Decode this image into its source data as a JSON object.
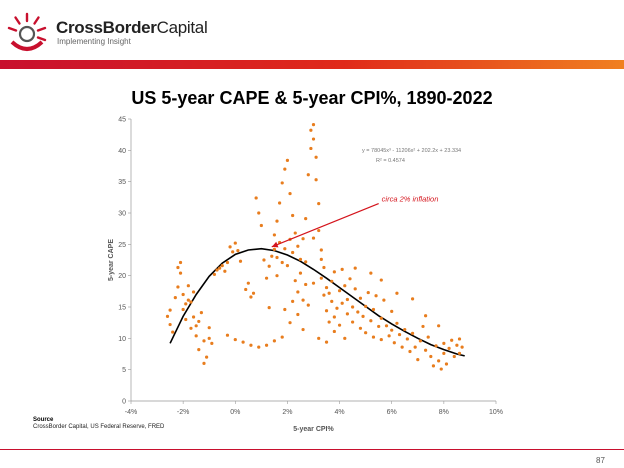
{
  "header": {
    "brand_bold": "CrossBorder",
    "brand_rest": "Capital",
    "tagline": "Implementing Insight"
  },
  "slide": {
    "title": "US 5-year CAPE & 5-year CPI%, 1890-2022",
    "source_label": "Source",
    "source_text": "CrossBorder Capital, US Federal Reserve, FRED",
    "page_number": "87"
  },
  "colors": {
    "brand_red": "#c8102e",
    "scatter": "#e87d1e",
    "trend": "#000000",
    "annotation": "#d4141c"
  },
  "chart_data": {
    "type": "scatter",
    "title": "",
    "xlabel": "5-year CPI%",
    "ylabel": "5-year CAPE",
    "xlim": [
      -4,
      10
    ],
    "ylim": [
      0,
      45
    ],
    "x_ticks": [
      -4,
      -2,
      0,
      2,
      4,
      6,
      8,
      10
    ],
    "x_tick_labels": [
      "-4%",
      "-2%",
      "0%",
      "2%",
      "4%",
      "6%",
      "8%",
      "10%"
    ],
    "y_ticks": [
      0,
      5,
      10,
      15,
      20,
      25,
      30,
      35,
      40,
      45
    ],
    "y_tick_labels": [
      "0",
      "5",
      "10",
      "15",
      "20",
      "25",
      "30",
      "35",
      "40",
      "45"
    ],
    "trendline": {
      "equation": "y = 78045x³ - 11206x² + 202.2x + 23.334",
      "r2": "R² = 0.4574",
      "points": [
        {
          "x": -2.5,
          "y": 9.2
        },
        {
          "x": -2.0,
          "y": 13.5
        },
        {
          "x": -1.5,
          "y": 17.0
        },
        {
          "x": -1.0,
          "y": 19.9
        },
        {
          "x": -0.5,
          "y": 22.0
        },
        {
          "x": 0.0,
          "y": 23.4
        },
        {
          "x": 0.5,
          "y": 24.1
        },
        {
          "x": 1.0,
          "y": 24.3
        },
        {
          "x": 1.5,
          "y": 24.0
        },
        {
          "x": 2.0,
          "y": 23.3
        },
        {
          "x": 2.5,
          "y": 22.3
        },
        {
          "x": 3.0,
          "y": 21.0
        },
        {
          "x": 3.5,
          "y": 19.6
        },
        {
          "x": 4.0,
          "y": 18.1
        },
        {
          "x": 4.5,
          "y": 16.6
        },
        {
          "x": 5.0,
          "y": 15.1
        },
        {
          "x": 5.5,
          "y": 13.6
        },
        {
          "x": 6.0,
          "y": 12.3
        },
        {
          "x": 6.5,
          "y": 11.1
        },
        {
          "x": 7.0,
          "y": 10.0
        },
        {
          "x": 7.5,
          "y": 9.0
        },
        {
          "x": 8.0,
          "y": 8.2
        },
        {
          "x": 8.5,
          "y": 7.5
        },
        {
          "x": 8.8,
          "y": 7.2
        }
      ]
    },
    "annotation": {
      "text": "circa 2% inflation",
      "arrow_from": {
        "x": 5.5,
        "y": 31.5
      },
      "arrow_to": {
        "x": 1.4,
        "y": 24.6
      }
    },
    "series": [
      {
        "points": [
          [
            -2.6,
            13.5
          ],
          [
            -2.5,
            12.2
          ],
          [
            -2.5,
            14.5
          ],
          [
            -2.4,
            11.0
          ],
          [
            -2.3,
            16.5
          ],
          [
            -2.2,
            18.2
          ],
          [
            -2.2,
            21.3
          ],
          [
            -2.1,
            22.1
          ],
          [
            -2.1,
            20.4
          ],
          [
            -2.0,
            17.0
          ],
          [
            -2.0,
            14.6
          ],
          [
            -1.9,
            15.5
          ],
          [
            -1.9,
            13.0
          ],
          [
            -1.8,
            18.4
          ],
          [
            -1.8,
            16.1
          ],
          [
            -1.7,
            11.6
          ],
          [
            -1.7,
            15.8
          ],
          [
            -1.6,
            17.4
          ],
          [
            -1.6,
            13.4
          ],
          [
            -1.5,
            12.0
          ],
          [
            -1.5,
            10.4
          ],
          [
            -1.4,
            8.2
          ],
          [
            -1.4,
            12.7
          ],
          [
            -1.3,
            14.1
          ],
          [
            -1.2,
            9.6
          ],
          [
            -1.2,
            6.0
          ],
          [
            -1.1,
            7.0
          ],
          [
            -1.0,
            10.0
          ],
          [
            -1.0,
            11.7
          ],
          [
            -0.9,
            9.2
          ],
          [
            -0.8,
            20.2
          ],
          [
            -0.7,
            20.9
          ],
          [
            -0.6,
            21.2
          ],
          [
            -0.5,
            21.6
          ],
          [
            -0.4,
            20.7
          ],
          [
            -0.3,
            22.1
          ],
          [
            -0.2,
            24.6
          ],
          [
            -0.1,
            23.8
          ],
          [
            0.0,
            25.2
          ],
          [
            0.1,
            24.0
          ],
          [
            0.2,
            22.3
          ],
          [
            -0.3,
            10.5
          ],
          [
            0.0,
            9.8
          ],
          [
            0.3,
            9.4
          ],
          [
            0.6,
            8.9
          ],
          [
            0.9,
            8.6
          ],
          [
            1.2,
            8.9
          ],
          [
            1.5,
            9.6
          ],
          [
            1.8,
            10.2
          ],
          [
            0.5,
            18.8
          ],
          [
            0.7,
            17.2
          ],
          [
            0.8,
            32.4
          ],
          [
            0.9,
            30.0
          ],
          [
            1.0,
            28.0
          ],
          [
            1.1,
            22.5
          ],
          [
            1.2,
            19.6
          ],
          [
            1.3,
            21.5
          ],
          [
            1.4,
            23.1
          ],
          [
            1.5,
            24.2
          ],
          [
            1.5,
            26.5
          ],
          [
            1.6,
            22.9
          ],
          [
            1.6,
            28.7
          ],
          [
            1.7,
            25.3
          ],
          [
            1.7,
            31.6
          ],
          [
            1.8,
            22.1
          ],
          [
            1.8,
            34.8
          ],
          [
            1.9,
            24.3
          ],
          [
            1.9,
            37.0
          ],
          [
            2.0,
            21.6
          ],
          [
            2.0,
            38.4
          ],
          [
            2.1,
            25.8
          ],
          [
            2.1,
            33.1
          ],
          [
            2.2,
            23.7
          ],
          [
            2.2,
            29.6
          ],
          [
            2.3,
            26.8
          ],
          [
            2.3,
            19.2
          ],
          [
            2.4,
            24.7
          ],
          [
            2.4,
            17.4
          ],
          [
            2.5,
            22.6
          ],
          [
            2.5,
            20.4
          ],
          [
            2.6,
            16.1
          ],
          [
            2.6,
            25.9
          ],
          [
            2.7,
            18.6
          ],
          [
            2.7,
            22.2
          ],
          [
            2.8,
            15.3
          ],
          [
            2.8,
            36.1
          ],
          [
            2.9,
            40.3
          ],
          [
            2.9,
            43.2
          ],
          [
            3.0,
            44.1
          ],
          [
            3.0,
            41.8
          ],
          [
            3.1,
            38.9
          ],
          [
            3.1,
            35.3
          ],
          [
            3.2,
            31.5
          ],
          [
            3.2,
            27.2
          ],
          [
            3.3,
            24.1
          ],
          [
            3.3,
            19.6
          ],
          [
            3.4,
            16.9
          ],
          [
            3.4,
            21.3
          ],
          [
            3.5,
            18.1
          ],
          [
            3.5,
            14.4
          ],
          [
            3.6,
            17.2
          ],
          [
            3.6,
            12.6
          ],
          [
            3.7,
            15.9
          ],
          [
            3.7,
            19.1
          ],
          [
            3.8,
            13.4
          ],
          [
            3.8,
            20.6
          ],
          [
            3.9,
            14.8
          ],
          [
            4.0,
            17.6
          ],
          [
            4.0,
            12.1
          ],
          [
            4.1,
            15.6
          ],
          [
            4.1,
            21.0
          ],
          [
            4.2,
            18.4
          ],
          [
            4.3,
            13.9
          ],
          [
            4.3,
            16.2
          ],
          [
            4.4,
            19.5
          ],
          [
            4.5,
            15.0
          ],
          [
            4.5,
            12.6
          ],
          [
            4.6,
            17.9
          ],
          [
            4.7,
            14.2
          ],
          [
            4.8,
            11.6
          ],
          [
            4.8,
            16.4
          ],
          [
            4.9,
            13.5
          ],
          [
            5.0,
            10.9
          ],
          [
            5.0,
            15.1
          ],
          [
            5.1,
            17.3
          ],
          [
            5.2,
            12.8
          ],
          [
            5.3,
            10.2
          ],
          [
            5.3,
            14.6
          ],
          [
            5.4,
            16.8
          ],
          [
            5.5,
            11.9
          ],
          [
            5.6,
            9.8
          ],
          [
            5.6,
            13.2
          ],
          [
            5.7,
            16.1
          ],
          [
            5.8,
            12.0
          ],
          [
            5.9,
            10.4
          ],
          [
            6.0,
            11.3
          ],
          [
            6.0,
            14.3
          ],
          [
            6.1,
            9.3
          ],
          [
            6.2,
            12.4
          ],
          [
            6.3,
            10.6
          ],
          [
            6.4,
            8.6
          ],
          [
            6.5,
            11.4
          ],
          [
            6.6,
            9.9
          ],
          [
            6.7,
            7.9
          ],
          [
            6.8,
            10.8
          ],
          [
            6.9,
            8.6
          ],
          [
            7.0,
            6.6
          ],
          [
            7.1,
            9.6
          ],
          [
            7.2,
            11.9
          ],
          [
            7.3,
            8.1
          ],
          [
            7.4,
            10.2
          ],
          [
            7.5,
            7.1
          ],
          [
            7.6,
            5.6
          ],
          [
            7.7,
            8.8
          ],
          [
            7.8,
            6.4
          ],
          [
            7.9,
            5.1
          ],
          [
            8.0,
            7.6
          ],
          [
            8.0,
            9.2
          ],
          [
            8.1,
            5.9
          ],
          [
            8.2,
            8.4
          ],
          [
            8.3,
            9.7
          ],
          [
            8.4,
            7.1
          ],
          [
            8.5,
            8.9
          ],
          [
            8.6,
            9.9
          ],
          [
            8.6,
            7.6
          ],
          [
            8.7,
            8.6
          ],
          [
            3.2,
            10.0
          ],
          [
            3.5,
            9.4
          ],
          [
            3.8,
            11.1
          ],
          [
            4.2,
            10.0
          ],
          [
            2.1,
            12.5
          ],
          [
            2.4,
            13.8
          ],
          [
            1.9,
            14.6
          ],
          [
            2.6,
            11.4
          ],
          [
            1.3,
            14.9
          ],
          [
            0.6,
            16.6
          ],
          [
            0.4,
            17.8
          ],
          [
            4.6,
            21.2
          ],
          [
            5.2,
            20.4
          ],
          [
            5.6,
            19.3
          ],
          [
            6.2,
            17.2
          ],
          [
            6.8,
            16.3
          ],
          [
            7.3,
            13.6
          ],
          [
            7.8,
            12.0
          ],
          [
            1.6,
            20.0
          ],
          [
            2.2,
            15.9
          ],
          [
            3.0,
            18.8
          ],
          [
            3.3,
            22.6
          ],
          [
            3.0,
            26.0
          ],
          [
            2.7,
            29.1
          ]
        ]
      }
    ]
  }
}
